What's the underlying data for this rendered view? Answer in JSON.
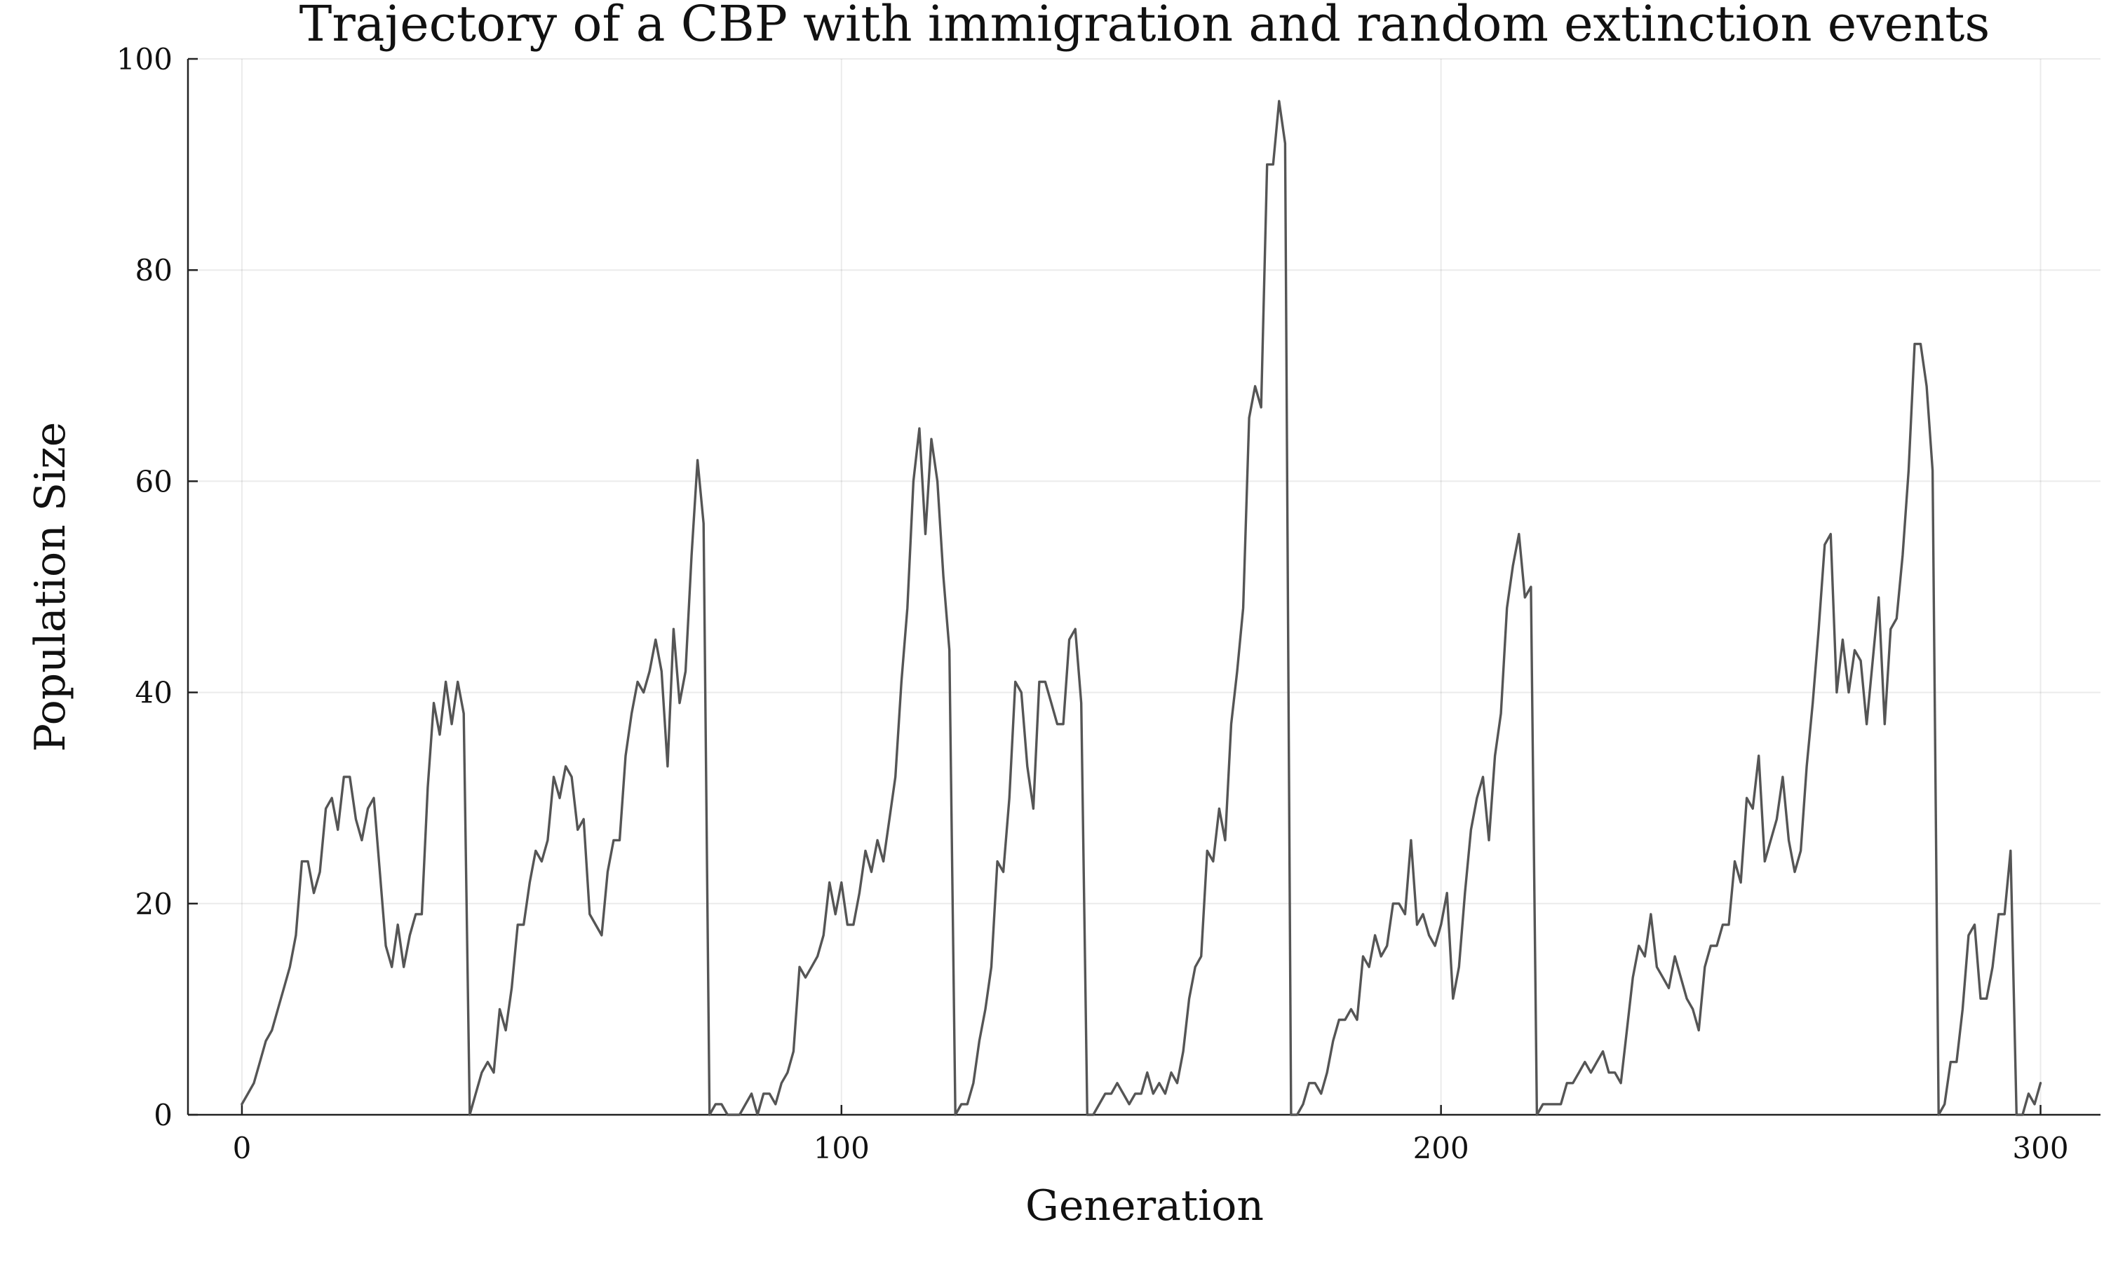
{
  "chart_data": {
    "type": "line",
    "title": "Trajectory of a CBP with immigration and random extinction events",
    "xlabel": "Generation",
    "ylabel": "Population Size",
    "xlim": [
      -9,
      310
    ],
    "ylim": [
      0,
      100
    ],
    "xticks": [
      0,
      100,
      200,
      300
    ],
    "yticks": [
      0,
      20,
      40,
      60,
      80,
      100
    ],
    "grid": true,
    "legend": "none",
    "colors": {
      "series": "#555555"
    },
    "series": [
      {
        "x": [
          0,
          1,
          2,
          3,
          4,
          5,
          6,
          7,
          8,
          9,
          10,
          11,
          12,
          13,
          14,
          15,
          16,
          17,
          18,
          19,
          20,
          21,
          22,
          23,
          24,
          25,
          26,
          27,
          28,
          29,
          30,
          31,
          32,
          33,
          34,
          35,
          36,
          37,
          38,
          39,
          40,
          41,
          42,
          43,
          44,
          45,
          46,
          47,
          48,
          49,
          50,
          51,
          52,
          53,
          54,
          55,
          56,
          57,
          58,
          59,
          60,
          61,
          62,
          63,
          64,
          65,
          66,
          67,
          68,
          69,
          70,
          71,
          72,
          73,
          74,
          75,
          76,
          77,
          78,
          79,
          80,
          81,
          82,
          83,
          84,
          85,
          86,
          87,
          88,
          89,
          90,
          91,
          92,
          93,
          94,
          95,
          96,
          97,
          98,
          99,
          100,
          101,
          102,
          103,
          104,
          105,
          106,
          107,
          108,
          109,
          110,
          111,
          112,
          113,
          114,
          115,
          116,
          117,
          118,
          119,
          120,
          121,
          122,
          123,
          124,
          125,
          126,
          127,
          128,
          129,
          130,
          131,
          132,
          133,
          134,
          135,
          136,
          137,
          138,
          139,
          140,
          141,
          142,
          143,
          144,
          145,
          146,
          147,
          148,
          149,
          150,
          151,
          152,
          153,
          154,
          155,
          156,
          157,
          158,
          159,
          160,
          161,
          162,
          163,
          164,
          165,
          166,
          167,
          168,
          169,
          170,
          171,
          172,
          173,
          174,
          175,
          176,
          177,
          178,
          179,
          180,
          181,
          182,
          183,
          184,
          185,
          186,
          187,
          188,
          189,
          190,
          191,
          192,
          193,
          194,
          195,
          196,
          197,
          198,
          199,
          200,
          201,
          202,
          203,
          204,
          205,
          206,
          207,
          208,
          209,
          210,
          211,
          212,
          213,
          214,
          215,
          216,
          217,
          218,
          219,
          220,
          221,
          222,
          223,
          224,
          225,
          226,
          227,
          228,
          229,
          230,
          231,
          232,
          233,
          234,
          235,
          236,
          237,
          238,
          239,
          240,
          241,
          242,
          243,
          244,
          245,
          246,
          247,
          248,
          249,
          250,
          251,
          252,
          253,
          254,
          255,
          256,
          257,
          258,
          259,
          260,
          261,
          262,
          263,
          264,
          265,
          266,
          267,
          268,
          269,
          270,
          271,
          272,
          273,
          274,
          275,
          276,
          277,
          278,
          279,
          280,
          281,
          282,
          283,
          284,
          285,
          286,
          287,
          288,
          289,
          290,
          291,
          292,
          293,
          294,
          295,
          296,
          297,
          298,
          299,
          300
        ],
        "y": [
          1,
          2,
          3,
          5,
          7,
          8,
          10,
          12,
          14,
          17,
          24,
          24,
          21,
          23,
          29,
          30,
          27,
          32,
          32,
          28,
          26,
          29,
          30,
          23,
          16,
          14,
          18,
          14,
          17,
          19,
          19,
          31,
          39,
          36,
          41,
          37,
          41,
          38,
          0,
          2,
          4,
          5,
          4,
          10,
          8,
          12,
          18,
          18,
          22,
          25,
          24,
          26,
          32,
          30,
          33,
          32,
          27,
          28,
          19,
          18,
          17,
          23,
          26,
          26,
          34,
          38,
          41,
          40,
          42,
          45,
          42,
          33,
          46,
          39,
          42,
          53,
          62,
          56,
          0,
          1,
          1,
          0,
          0,
          0,
          1,
          2,
          0,
          2,
          2,
          1,
          3,
          4,
          6,
          14,
          13,
          14,
          15,
          17,
          22,
          19,
          22,
          18,
          18,
          21,
          25,
          23,
          26,
          24,
          28,
          32,
          41,
          48,
          60,
          65,
          55,
          64,
          60,
          51,
          44,
          0,
          1,
          1,
          3,
          7,
          10,
          14,
          24,
          23,
          30,
          41,
          40,
          33,
          29,
          41,
          41,
          39,
          37,
          37,
          45,
          46,
          39,
          0,
          0,
          1,
          2,
          2,
          3,
          2,
          1,
          2,
          2,
          4,
          2,
          3,
          2,
          4,
          3,
          6,
          11,
          14,
          15,
          25,
          24,
          29,
          26,
          37,
          42,
          48,
          66,
          69,
          67,
          90,
          90,
          96,
          92,
          0,
          0,
          1,
          3,
          3,
          2,
          4,
          7,
          9,
          9,
          10,
          9,
          15,
          14,
          17,
          15,
          16,
          20,
          20,
          19,
          26,
          18,
          19,
          17,
          16,
          18,
          21,
          11,
          14,
          21,
          27,
          30,
          32,
          26,
          34,
          38,
          48,
          52,
          55,
          49,
          50,
          0,
          1,
          1,
          1,
          1,
          3,
          3,
          4,
          5,
          4,
          5,
          6,
          4,
          4,
          3,
          8,
          13,
          16,
          15,
          19,
          14,
          13,
          12,
          15,
          13,
          11,
          10,
          8,
          14,
          16,
          16,
          18,
          18,
          24,
          22,
          30,
          29,
          34,
          24,
          26,
          28,
          32,
          26,
          23,
          25,
          33,
          39,
          46,
          54,
          55,
          40,
          45,
          40,
          44,
          43,
          37,
          43,
          49,
          37,
          46,
          47,
          53,
          61,
          73,
          73,
          69,
          61,
          0,
          1,
          5,
          5,
          10,
          17,
          18,
          11,
          11,
          14,
          19,
          19,
          25,
          0,
          0,
          2,
          1,
          3
        ]
      }
    ]
  }
}
